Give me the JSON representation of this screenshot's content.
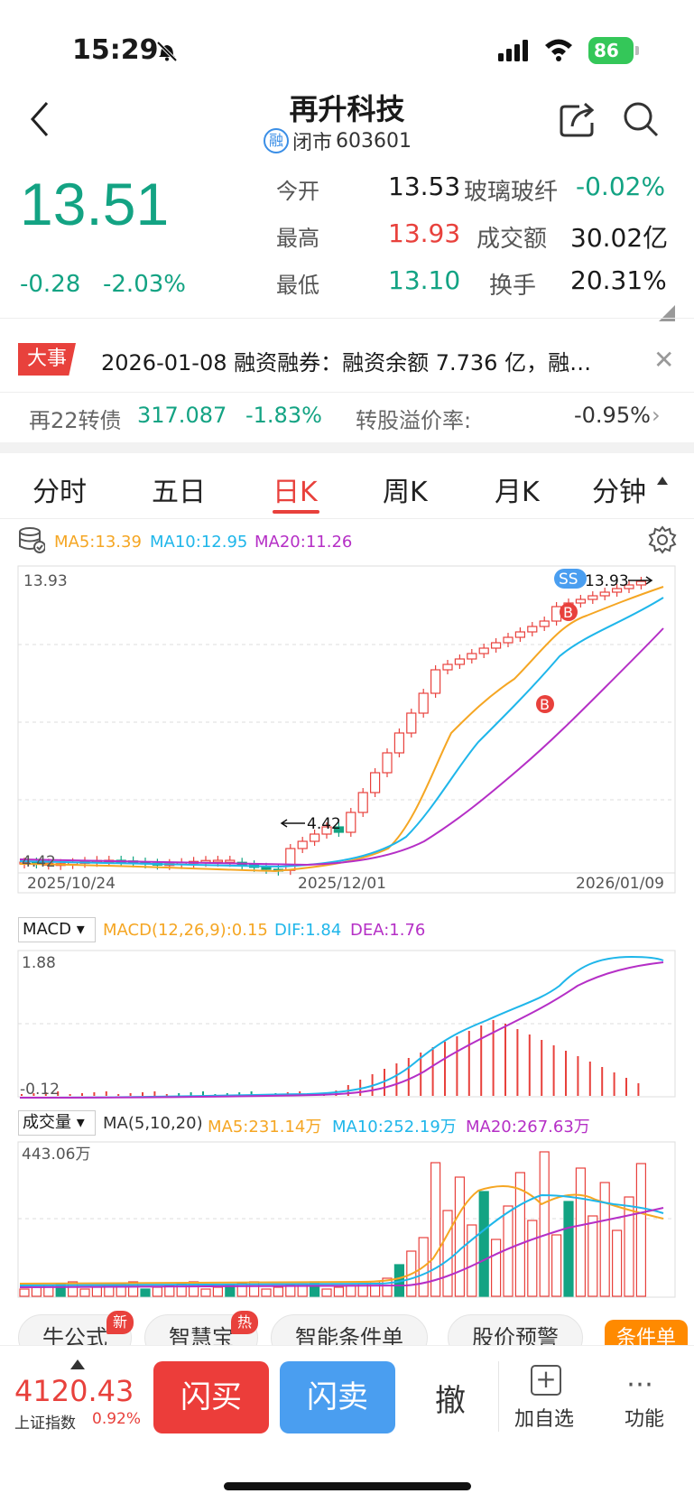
{
  "status_bar": {
    "time": "15:29",
    "battery": "86"
  },
  "header": {
    "title": "再升科技",
    "market_tag": "融",
    "status": "闭市",
    "code": "603601"
  },
  "quote": {
    "price": "13.51",
    "change": "-0.28",
    "change_pct": "-2.03%",
    "stats": [
      {
        "label": "今开",
        "value": "13.53",
        "color": "#1a1a1a"
      },
      {
        "label": "最高",
        "value": "13.93",
        "color": "#e8413c"
      },
      {
        "label": "最低",
        "value": "13.10",
        "color": "#13a383"
      }
    ],
    "sector": {
      "name": "玻璃玻纤",
      "change": "-0.02%"
    },
    "stats2": [
      {
        "label": "成交额",
        "value": "30.02亿"
      },
      {
        "label": "换手",
        "value": "20.31%"
      }
    ]
  },
  "news": {
    "tag": "大事",
    "text": "2026-01-08 融资融券：融资余额 7.736 亿，融…"
  },
  "bond": {
    "name": "再22转债",
    "price": "317.087",
    "change": "-1.83%",
    "premium_label": "转股溢价率:",
    "premium": "-0.95%"
  },
  "tabs": [
    "分时",
    "五日",
    "日K",
    "周K",
    "月K",
    "分钟"
  ],
  "active_tab": 2,
  "kline": {
    "ma_legend": {
      "ma5": "MA5:13.39",
      "ma10": "MA10:12.95",
      "ma20": "MA20:11.26"
    },
    "high_label": "13.93",
    "low_label": "4.42",
    "marker_high": "13.93",
    "marker_low": "4.42",
    "dates": [
      "2025/10/24",
      "2025/12/01",
      "2026/01/09"
    ],
    "markers": {
      "ss": "SS",
      "b": "B"
    },
    "colors": {
      "up": "#e8413c",
      "down": "#13a383",
      "ma5": "#f5a623",
      "ma10": "#1fb6ea",
      "ma20": "#b52fc6"
    }
  },
  "macd": {
    "selector": "MACD",
    "legend": {
      "params": "MACD(12,26,9):0.15",
      "dif": "DIF:1.84",
      "dea": "DEA:1.76"
    },
    "top": "1.88",
    "bottom": "-0.12"
  },
  "volume": {
    "selector": "成交量",
    "legend": {
      "params": "MA(5,10,20)",
      "ma5": "MA5:231.14万",
      "ma10": "MA10:252.19万",
      "ma20": "MA20:267.63万"
    },
    "top": "443.06万"
  },
  "chips": [
    {
      "label": "牛公式",
      "badge": "新"
    },
    {
      "label": "智慧宝",
      "badge": "热"
    },
    {
      "label": "智能条件单",
      "badge": ""
    },
    {
      "label": "股价预警",
      "badge": ""
    }
  ],
  "condition_btn": "条件单",
  "bottom": {
    "index_value": "4120.43",
    "index_name": "上证指数",
    "index_pct": "0.92%",
    "buy": "闪买",
    "sell": "闪卖",
    "cancel": "撤",
    "add": "加自选",
    "more": "功能"
  }
}
